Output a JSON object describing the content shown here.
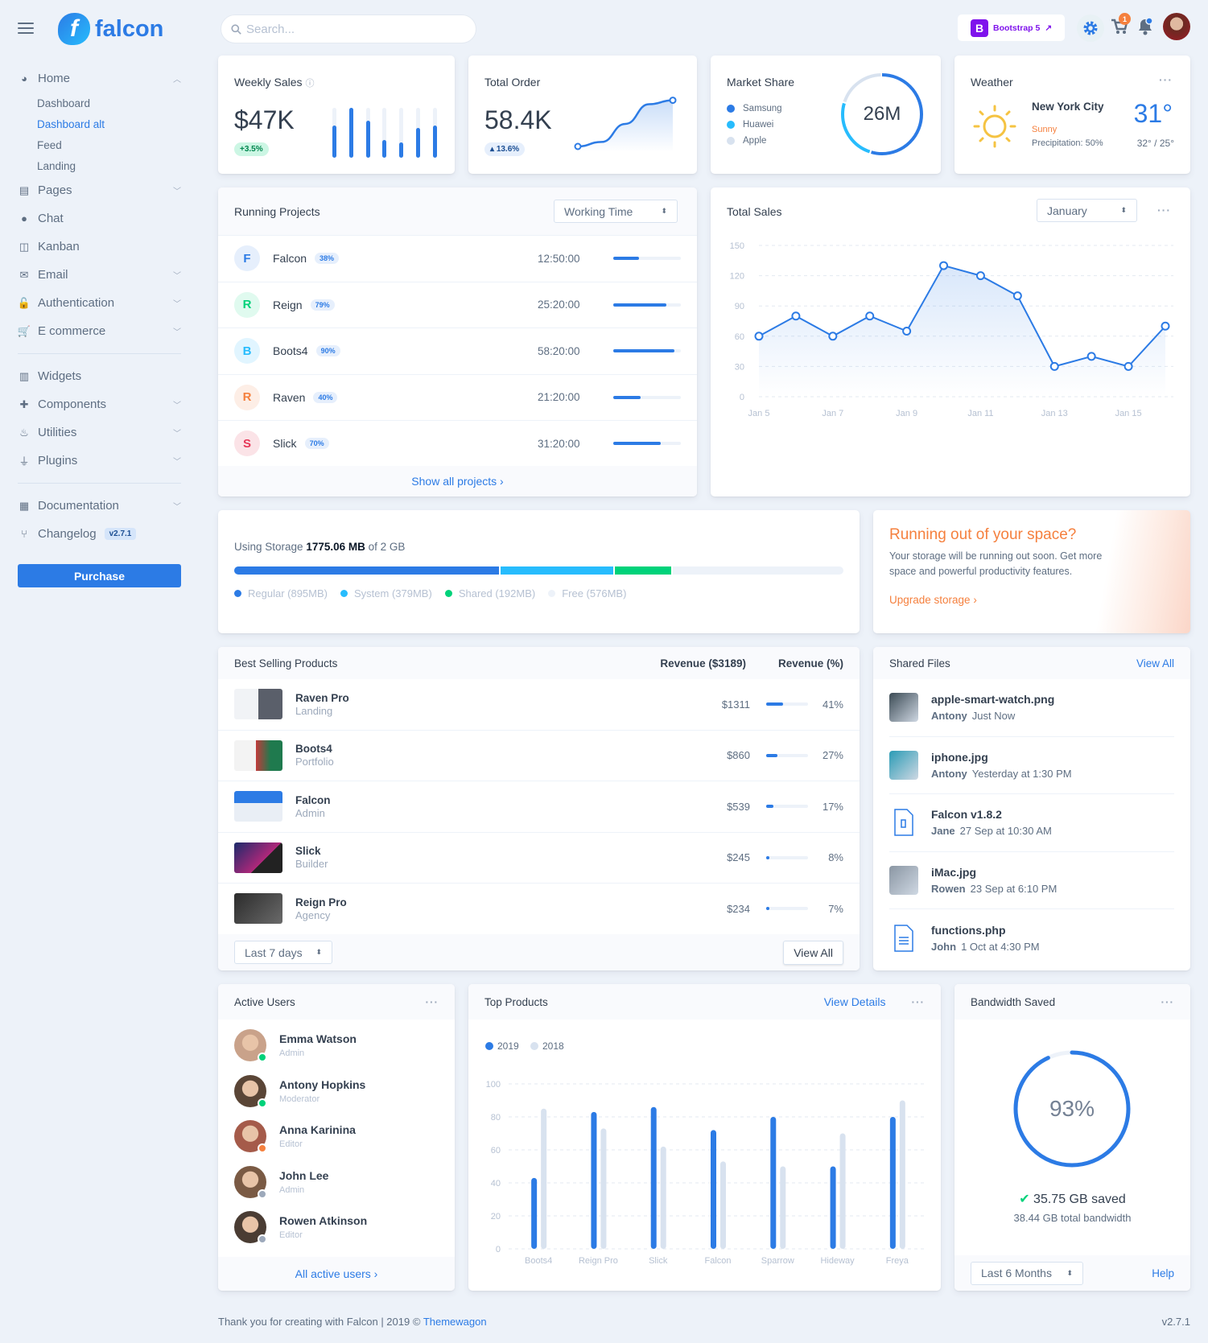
{
  "brand": {
    "name": "falcon",
    "logo_letter": "f"
  },
  "search": {
    "placeholder": "Search..."
  },
  "topbar": {
    "bootstrap_label": "Bootstrap 5",
    "bootstrap_letter": "B",
    "cart_count": "1"
  },
  "sidebar": {
    "home": {
      "label": "Home",
      "icon": "pie-chart-icon",
      "subitems": [
        "Dashboard",
        "Dashboard alt",
        "Feed",
        "Landing"
      ],
      "active": "Dashboard alt"
    },
    "group1": [
      {
        "label": "Pages",
        "icon": "copy-icon",
        "chevron": true
      },
      {
        "label": "Chat",
        "icon": "comments-icon",
        "chevron": false
      },
      {
        "label": "Kanban",
        "icon": "trello-icon",
        "chevron": false
      },
      {
        "label": "Email",
        "icon": "envelope-open-icon",
        "chevron": true
      },
      {
        "label": "Authentication",
        "icon": "unlock-icon",
        "chevron": true
      },
      {
        "label": "E commerce",
        "icon": "cart-icon",
        "chevron": true
      }
    ],
    "group2": [
      {
        "label": "Widgets",
        "icon": "poll-icon",
        "chevron": false
      },
      {
        "label": "Components",
        "icon": "puzzle-icon",
        "chevron": true
      },
      {
        "label": "Utilities",
        "icon": "fire-icon",
        "chevron": true
      },
      {
        "label": "Plugins",
        "icon": "plug-icon",
        "chevron": true
      }
    ],
    "group3": [
      {
        "label": "Documentation",
        "icon": "book-icon",
        "chevron": true
      },
      {
        "label": "Changelog",
        "icon": "code-branch-icon",
        "chevron": false,
        "badge": "v2.7.1"
      }
    ],
    "purchase_label": "Purchase"
  },
  "weekly_sales": {
    "title": "Weekly Sales",
    "value": "$47K",
    "change": "+3.5%",
    "bars": [
      65,
      100,
      75,
      35,
      30,
      60,
      65
    ]
  },
  "total_order": {
    "title": "Total Order",
    "value": "58.4K",
    "change": "13.6%",
    "line": [
      10,
      18,
      50,
      85,
      92
    ]
  },
  "market_share": {
    "title": "Market Share",
    "center": "26M",
    "items": [
      {
        "name": "Samsung",
        "color": "#2c7be5",
        "share": 55
      },
      {
        "name": "Huawei",
        "color": "#27bcfd",
        "share": 25
      },
      {
        "name": "Apple",
        "color": "#d8e2ef",
        "share": 20
      }
    ]
  },
  "weather": {
    "title": "Weather",
    "city": "New York City",
    "condition": "Sunny",
    "precipitation": "Precipitation: 50%",
    "temp": "31°",
    "range": "32° / 25°"
  },
  "running_projects": {
    "title": "Running Projects",
    "select": "Working Time",
    "footer": "Show all projects",
    "items": [
      {
        "letter": "F",
        "name": "Falcon",
        "pct": 38,
        "time": "12:50:00",
        "fg": "#2c7be5",
        "bg": "#e6effc"
      },
      {
        "letter": "R",
        "name": "Reign",
        "pct": 79,
        "time": "25:20:00",
        "fg": "#00d27a",
        "bg": "#e0faef"
      },
      {
        "letter": "B",
        "name": "Boots4",
        "pct": 90,
        "time": "58:20:00",
        "fg": "#27bcfd",
        "bg": "#e1f5ff"
      },
      {
        "letter": "R",
        "name": "Raven",
        "pct": 40,
        "time": "21:20:00",
        "fg": "#f5803e",
        "bg": "#fdeee6"
      },
      {
        "letter": "S",
        "name": "Slick",
        "pct": 70,
        "time": "31:20:00",
        "fg": "#e63757",
        "bg": "#fbe3e7"
      }
    ]
  },
  "total_sales": {
    "title": "Total Sales",
    "select": "January"
  },
  "storage": {
    "prefix": "Using Storage",
    "used": "1775.06 MB",
    "suffix": "of 2 GB",
    "segments": [
      {
        "label": "Regular (895MB)",
        "mb": 895,
        "color": "#2c7be5"
      },
      {
        "label": "System (379MB)",
        "mb": 379,
        "color": "#27bcfd"
      },
      {
        "label": "Shared (192MB)",
        "mb": 192,
        "color": "#00d27a"
      },
      {
        "label": "Free (576MB)",
        "mb": 576,
        "color": "#edf2f9"
      }
    ]
  },
  "space": {
    "title": "Running out of your space?",
    "text": "Your storage will be running out soon. Get more space and powerful productivity features.",
    "link": "Upgrade storage"
  },
  "best_selling": {
    "title": "Best Selling Products",
    "col_revenue": "Revenue ($3189)",
    "col_pct": "Revenue (%)",
    "select": "Last 7 days",
    "view_all": "View All",
    "items": [
      {
        "name": "Raven Pro",
        "category": "Landing",
        "revenue": "$1311",
        "pct": 41,
        "pct_label": "41%",
        "thumb": "linear-gradient(90deg,#f1f3f6 50%,#5a5f6a 50%)"
      },
      {
        "name": "Boots4",
        "category": "Portfolio",
        "revenue": "$860",
        "pct": 27,
        "pct_label": "27%",
        "thumb": "linear-gradient(90deg,#f3f3f3 45%,#c23a3a 45%,#1f7a4e 75%)"
      },
      {
        "name": "Falcon",
        "category": "Admin",
        "revenue": "$539",
        "pct": 17,
        "pct_label": "17%",
        "thumb": "linear-gradient(180deg,#2c7be5 40%,#e9eef5 40%)"
      },
      {
        "name": "Slick",
        "category": "Builder",
        "revenue": "$245",
        "pct": 8,
        "pct_label": "8%",
        "thumb": "linear-gradient(135deg,#1b2a6b,#b0287a 60%,#222 60%)"
      },
      {
        "name": "Reign Pro",
        "category": "Agency",
        "revenue": "$234",
        "pct": 7,
        "pct_label": "7%",
        "thumb": "linear-gradient(135deg,#2b2b2b,#6a6a6a)"
      }
    ]
  },
  "shared_files": {
    "title": "Shared Files",
    "view_all": "View All",
    "items": [
      {
        "name": "apple-smart-watch.png",
        "user": "Antony",
        "time": "Just Now",
        "type": "image",
        "color": "#3b4a54"
      },
      {
        "name": "iphone.jpg",
        "user": "Antony",
        "time": "Yesterday at 1:30 PM",
        "type": "image",
        "color": "#2a9bb5"
      },
      {
        "name": "Falcon v1.8.2",
        "user": "Jane",
        "time": "27 Sep at 10:30 AM",
        "type": "zip",
        "color": "#2c7be5"
      },
      {
        "name": "iMac.jpg",
        "user": "Rowen",
        "time": "23 Sep at 6:10 PM",
        "type": "image",
        "color": "#8a96a3"
      },
      {
        "name": "functions.php",
        "user": "John",
        "time": "1 Oct at 4:30 PM",
        "type": "doc",
        "color": "#2c7be5"
      }
    ]
  },
  "active_users": {
    "title": "Active Users",
    "footer": "All active users",
    "items": [
      {
        "name": "Emma Watson",
        "role": "Admin",
        "status": "#00d27a",
        "avatar": "#c9a28a"
      },
      {
        "name": "Antony Hopkins",
        "role": "Moderator",
        "status": "#00d27a",
        "avatar": "#5a4536"
      },
      {
        "name": "Anna Karinina",
        "role": "Editor",
        "status": "#f5803e",
        "avatar": "#a55b4a"
      },
      {
        "name": "John Lee",
        "role": "Admin",
        "status": "#9da9bb",
        "avatar": "#7a5a44"
      },
      {
        "name": "Rowen Atkinson",
        "role": "Editor",
        "status": "#9da9bb",
        "avatar": "#4a3c33"
      }
    ]
  },
  "top_products": {
    "title": "Top Products",
    "link": "View Details"
  },
  "bandwidth": {
    "title": "Bandwidth Saved",
    "percent": 93,
    "percent_label": "93%",
    "saved": "35.75 GB saved",
    "total": "38.44 GB total bandwidth",
    "select": "Last 6 Months",
    "help": "Help"
  },
  "footer": {
    "text": "Thank you for creating with Falcon | 2019 ©",
    "link": "Themewagon",
    "version": "v2.7.1"
  },
  "chart_data": [
    {
      "type": "line",
      "title": "Total Sales",
      "x": [
        "Jan 5",
        "Jan 6",
        "Jan 7",
        "Jan 8",
        "Jan 9",
        "Jan 10",
        "Jan 11",
        "Jan 12",
        "Jan 13",
        "Jan 14",
        "Jan 15",
        "Jan 16"
      ],
      "x_tick_labels": [
        "Jan 5",
        "Jan 7",
        "Jan 9",
        "Jan 11",
        "Jan 13",
        "Jan 15"
      ],
      "values": [
        60,
        80,
        60,
        80,
        65,
        130,
        120,
        100,
        30,
        40,
        30,
        70
      ],
      "ylim": [
        0,
        150
      ],
      "yticks": [
        0,
        30,
        60,
        90,
        120,
        150
      ],
      "grid": true,
      "color": "#2c7be5"
    },
    {
      "type": "bar",
      "title": "Top Products",
      "categories": [
        "Boots4",
        "Reign Pro",
        "Slick",
        "Falcon",
        "Sparrow",
        "Hideway",
        "Freya"
      ],
      "series": [
        {
          "name": "2019",
          "values": [
            43,
            83,
            86,
            72,
            80,
            50,
            80
          ],
          "color": "#2c7be5"
        },
        {
          "name": "2018",
          "values": [
            85,
            73,
            62,
            53,
            50,
            70,
            90
          ],
          "color": "#d8e2ef"
        }
      ],
      "ylim": [
        0,
        100
      ],
      "yticks": [
        0,
        20,
        40,
        60,
        80,
        100
      ],
      "grid": true,
      "legend": "top-left"
    }
  ]
}
